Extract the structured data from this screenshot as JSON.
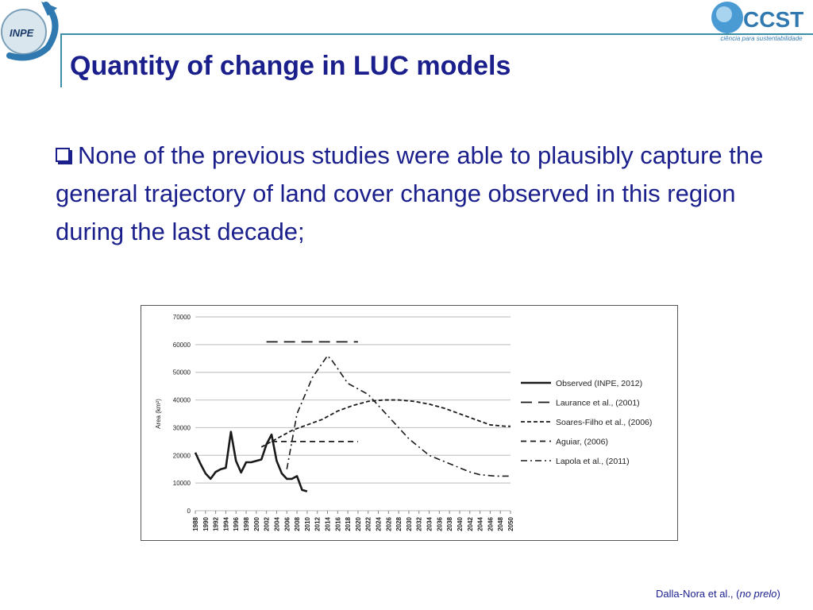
{
  "header": {
    "left_logo_text": "INPE",
    "right_logo_text": "CCST",
    "right_logo_caption": "ciência para sustentabilidade"
  },
  "slide": {
    "title": "Quantity of change in LUC models",
    "bullet": "None of the previous studies were able to plausibly capture the general trajectory of land cover change observed in this region during the last decade;",
    "citation_prefix": "Dalla-Nora et al., (",
    "citation_italic": "no prelo",
    "citation_suffix": ")"
  },
  "colors": {
    "title": "#1a1f8c",
    "rule": "#3a8fa6",
    "series": "#1a1a1a",
    "grid": "#c8c8c8"
  },
  "chart_data": {
    "type": "line",
    "title": "",
    "xlabel": "",
    "ylabel": "Area (km²)",
    "xlim": [
      1988,
      2050
    ],
    "ylim": [
      0,
      70000
    ],
    "yticks": [
      0,
      10000,
      20000,
      30000,
      40000,
      50000,
      60000,
      70000
    ],
    "xticks": [
      1988,
      1990,
      1992,
      1994,
      1996,
      1998,
      2000,
      2002,
      2004,
      2006,
      2008,
      2010,
      2012,
      2014,
      2016,
      2018,
      2020,
      2022,
      2024,
      2026,
      2028,
      2030,
      2032,
      2034,
      2036,
      2038,
      2040,
      2042,
      2044,
      2046,
      2048,
      2050
    ],
    "grid": true,
    "legend": "right",
    "series": [
      {
        "name": "Observed (INPE, 2012)",
        "style": "solid",
        "x": [
          1988,
          1989,
          1990,
          1991,
          1992,
          1993,
          1994,
          1995,
          1996,
          1997,
          1998,
          1999,
          2000,
          2001,
          2002,
          2003,
          2004,
          2005,
          2006,
          2007,
          2008,
          2009,
          2010
        ],
        "y": [
          21000,
          17000,
          13500,
          11500,
          14000,
          15000,
          15500,
          28500,
          18000,
          13800,
          17500,
          17500,
          18000,
          18500,
          24000,
          27500,
          18000,
          13500,
          11500,
          11500,
          12500,
          7500,
          7000
        ]
      },
      {
        "name": "Laurance et al., (2001)",
        "style": "longdash",
        "x": [
          2002,
          2020
        ],
        "y": [
          61000,
          61000
        ]
      },
      {
        "name": "Soares-Filho et al., (2006)",
        "style": "dash",
        "x": [
          2001,
          2004,
          2007,
          2010,
          2013,
          2016,
          2019,
          2022,
          2025,
          2028,
          2031,
          2034,
          2037,
          2040,
          2043,
          2046,
          2049,
          2050
        ],
        "y": [
          23000,
          26000,
          29000,
          31000,
          33000,
          36000,
          38000,
          39500,
          40000,
          40000,
          39500,
          38500,
          37000,
          35000,
          33000,
          31000,
          30500,
          30500
        ]
      },
      {
        "name": "Aguiar, (2006)",
        "style": "shortdash",
        "x": [
          2003,
          2020
        ],
        "y": [
          25000,
          25000
        ]
      },
      {
        "name": "Lapola et al., (2011)",
        "style": "dashdot",
        "x": [
          2006,
          2008,
          2011,
          2014,
          2015,
          2018,
          2022,
          2026,
          2030,
          2034,
          2038,
          2042,
          2044,
          2047,
          2050
        ],
        "y": [
          15000,
          35000,
          48000,
          56000,
          54000,
          46000,
          42000,
          34000,
          26000,
          20000,
          17000,
          14000,
          13000,
          12500,
          12500
        ]
      }
    ]
  }
}
